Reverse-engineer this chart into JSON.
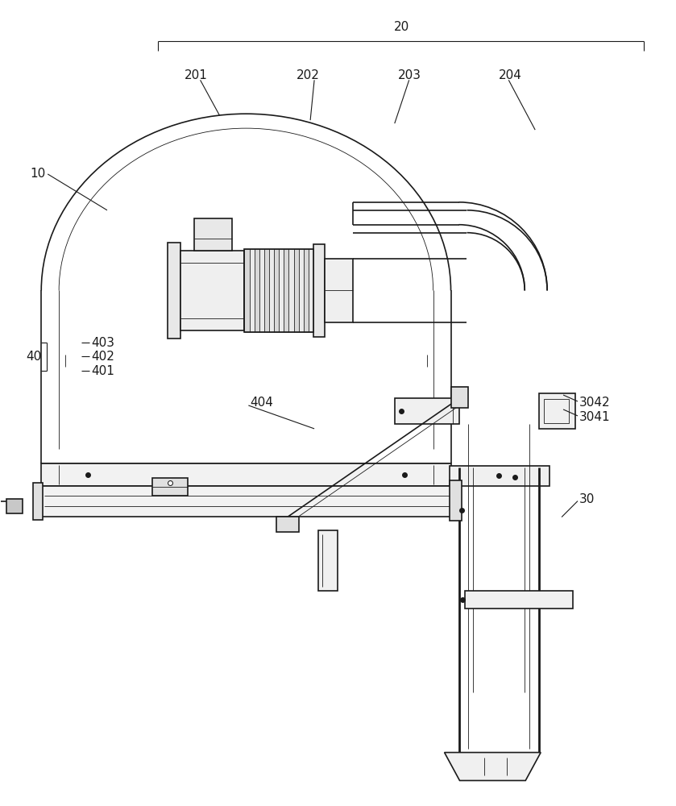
{
  "bg_color": "#ffffff",
  "lc": "#1a1a1a",
  "lw_main": 1.2,
  "lw_thin": 0.6,
  "lw_thick": 2.0,
  "label_fs": 11,
  "figsize": [
    8.39,
    10.0
  ],
  "dpi": 100,
  "annotation_lw": 0.8
}
